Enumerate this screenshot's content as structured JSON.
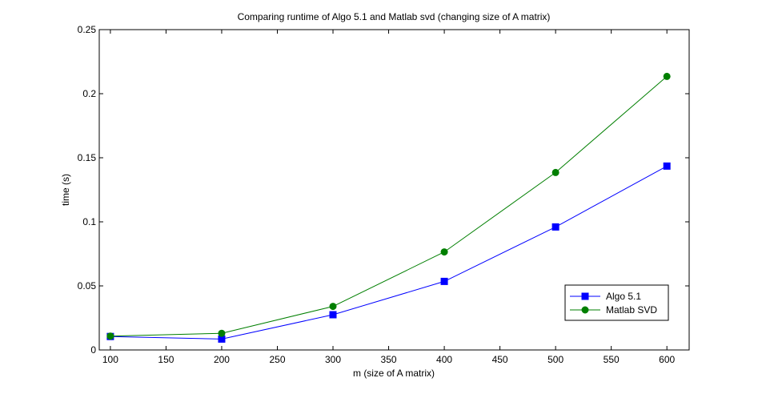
{
  "chart_data": {
    "type": "line",
    "title": "Comparing runtime of Algo 5.1 and Matlab svd (changing size of A matrix)",
    "xlabel": "m (size of A matrix)",
    "ylabel": "time (s)",
    "xlim": [
      90,
      620
    ],
    "ylim": [
      0,
      0.25
    ],
    "xticks": [
      100,
      150,
      200,
      250,
      300,
      350,
      400,
      450,
      500,
      550,
      600
    ],
    "yticks": [
      0,
      0.05,
      0.1,
      0.15,
      0.2,
      0.25
    ],
    "ytick_labels": [
      "0",
      "0.05",
      "0.1",
      "0.15",
      "0.2",
      "0.25"
    ],
    "grid": false,
    "legend_position": "bottom-right",
    "x": [
      100,
      200,
      300,
      400,
      500,
      600
    ],
    "series": [
      {
        "name": "Algo 5.1",
        "color": "#0000ff",
        "marker": "square",
        "values": [
          0.0105,
          0.0085,
          0.0275,
          0.0535,
          0.096,
          0.1435
        ]
      },
      {
        "name": "Matlab SVD",
        "color": "#007f00",
        "marker": "circle",
        "values": [
          0.0108,
          0.013,
          0.034,
          0.0765,
          0.1385,
          0.2135
        ]
      }
    ]
  }
}
